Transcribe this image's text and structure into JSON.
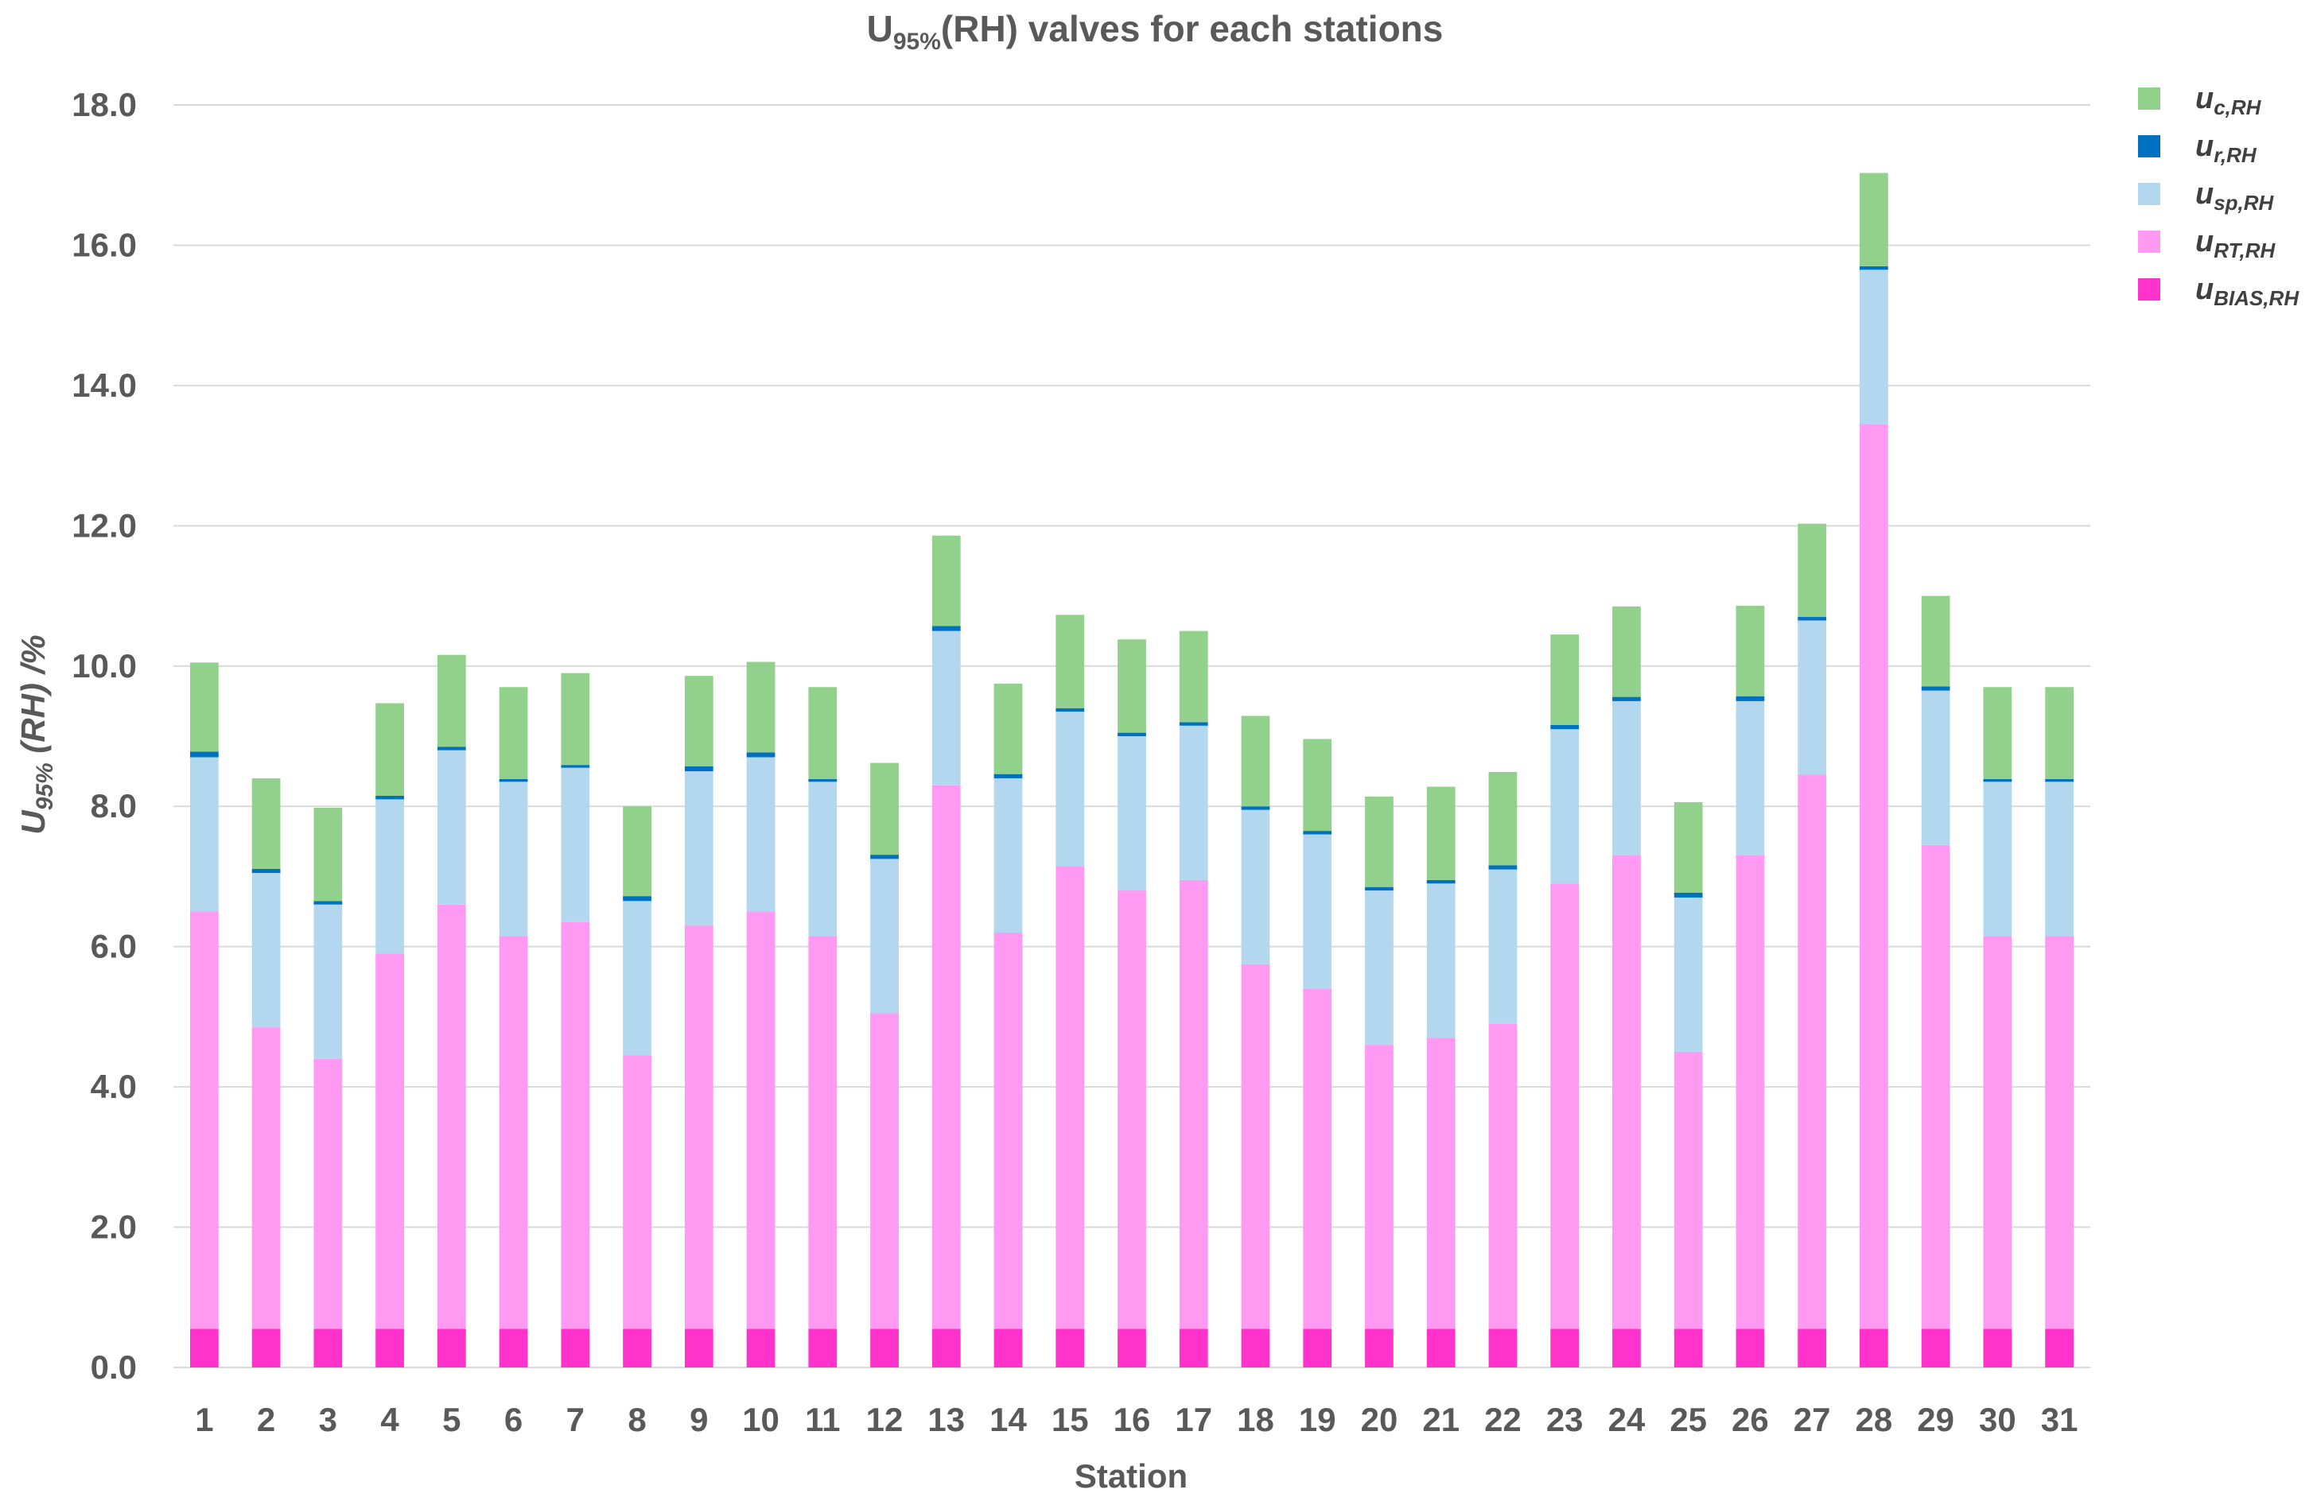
{
  "chart_data": {
    "type": "bar",
    "stacked": true,
    "title_main": "U",
    "title_sub": "95%",
    "title_rest": "(RH) valves for each stations",
    "xlabel": "Station",
    "ylabel_main": "U",
    "ylabel_sub": "95%",
    "ylabel_rest": " (RH) /%",
    "ylim": [
      0,
      18
    ],
    "ytick_values": [
      0,
      2,
      4,
      6,
      8,
      10,
      12,
      14,
      16,
      18
    ],
    "ytick_labels": [
      "0.0",
      "2.0",
      "4.0",
      "6.0",
      "8.0",
      "10.0",
      "12.0",
      "14.0",
      "16.0",
      "18.0"
    ],
    "gridlines": true,
    "legend_position": "right",
    "categories": [
      "1",
      "2",
      "3",
      "4",
      "5",
      "6",
      "7",
      "8",
      "9",
      "10",
      "11",
      "12",
      "13",
      "14",
      "15",
      "16",
      "17",
      "18",
      "19",
      "20",
      "21",
      "22",
      "23",
      "24",
      "25",
      "26",
      "27",
      "28",
      "29",
      "30",
      "31"
    ],
    "series": [
      {
        "name": "u",
        "sub": "BIAS,RH",
        "color": "#ff33cc",
        "values": [
          0.55,
          0.55,
          0.55,
          0.55,
          0.55,
          0.55,
          0.55,
          0.55,
          0.55,
          0.55,
          0.55,
          0.55,
          0.55,
          0.55,
          0.55,
          0.55,
          0.55,
          0.55,
          0.55,
          0.55,
          0.55,
          0.55,
          0.55,
          0.55,
          0.55,
          0.55,
          0.55,
          0.55,
          0.55,
          0.55,
          0.55
        ]
      },
      {
        "name": "u",
        "sub": "RT,RH",
        "color": "#ff99f2",
        "values": [
          5.95,
          4.3,
          3.85,
          5.35,
          6.05,
          5.6,
          5.8,
          3.9,
          5.75,
          5.95,
          5.6,
          4.5,
          7.75,
          5.65,
          6.6,
          6.25,
          6.4,
          5.2,
          4.85,
          4.05,
          4.15,
          4.35,
          6.35,
          6.75,
          3.95,
          6.75,
          7.9,
          12.9,
          6.9,
          5.6,
          5.6
        ]
      },
      {
        "name": "u",
        "sub": "sp,RH",
        "color": "#b4d7f0",
        "values": [
          2.2,
          2.2,
          2.2,
          2.2,
          2.2,
          2.2,
          2.2,
          2.2,
          2.2,
          2.2,
          2.2,
          2.2,
          2.2,
          2.2,
          2.2,
          2.2,
          2.2,
          2.2,
          2.2,
          2.2,
          2.2,
          2.2,
          2.2,
          2.2,
          2.2,
          2.2,
          2.2,
          2.2,
          2.2,
          2.2,
          2.2
        ]
      },
      {
        "name": "u",
        "sub": "r,RH",
        "color": "#0070c0",
        "values": [
          0.08,
          0.06,
          0.05,
          0.05,
          0.05,
          0.04,
          0.04,
          0.07,
          0.07,
          0.07,
          0.04,
          0.06,
          0.07,
          0.06,
          0.05,
          0.05,
          0.05,
          0.05,
          0.05,
          0.05,
          0.05,
          0.06,
          0.06,
          0.06,
          0.07,
          0.07,
          0.05,
          0.05,
          0.06,
          0.04,
          0.04
        ]
      },
      {
        "name": "u",
        "sub": "c,RH",
        "color": "#92d18b",
        "values": [
          1.27,
          1.29,
          1.33,
          1.32,
          1.31,
          1.31,
          1.31,
          1.28,
          1.29,
          1.29,
          1.31,
          1.31,
          1.29,
          1.29,
          1.33,
          1.33,
          1.3,
          1.29,
          1.31,
          1.29,
          1.33,
          1.33,
          1.29,
          1.29,
          1.29,
          1.29,
          1.33,
          1.33,
          1.29,
          1.31,
          1.31
        ]
      }
    ],
    "legend_order": [
      4,
      3,
      2,
      1,
      0
    ]
  }
}
